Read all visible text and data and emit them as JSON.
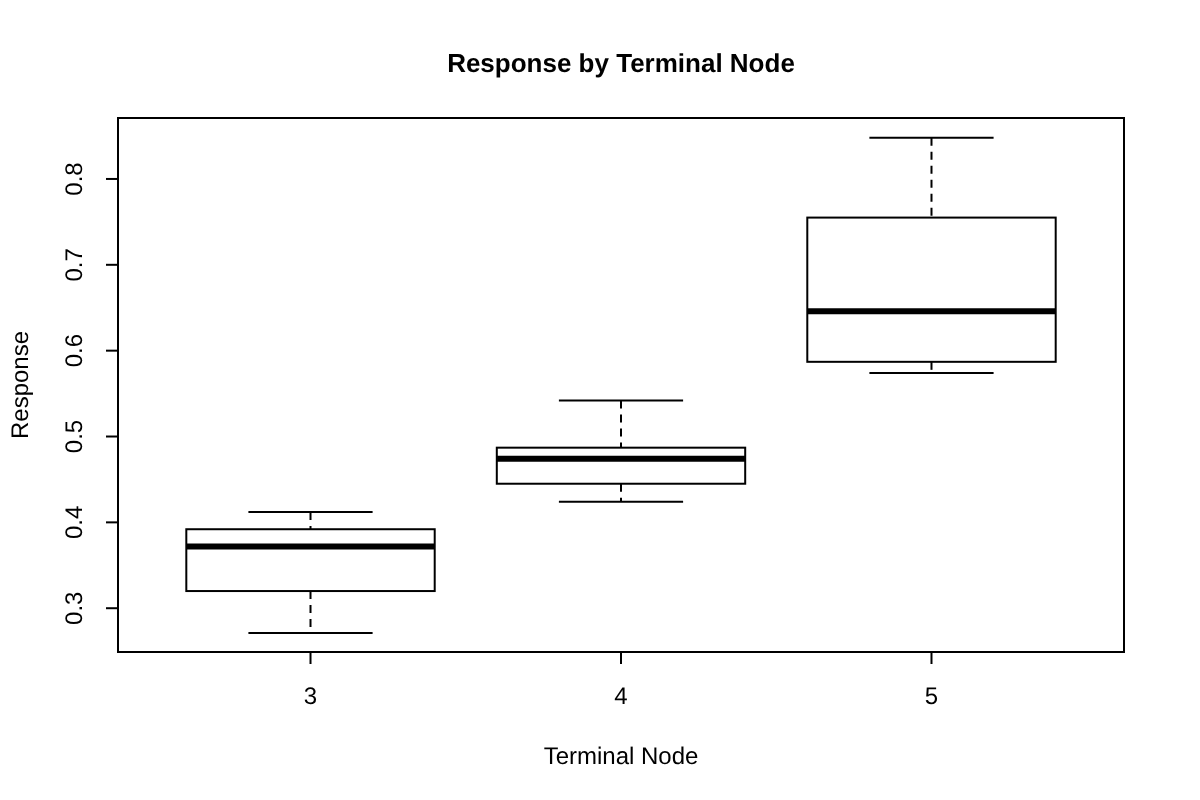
{
  "chart_data": {
    "type": "box",
    "title": "Response by Terminal Node",
    "xlabel": "Terminal Node",
    "ylabel": "Response",
    "categories": [
      "3",
      "4",
      "5"
    ],
    "boxes": [
      {
        "low": 0.271,
        "q1": 0.32,
        "median": 0.372,
        "q3": 0.392,
        "high": 0.412
      },
      {
        "low": 0.424,
        "q1": 0.445,
        "median": 0.474,
        "q3": 0.487,
        "high": 0.542
      },
      {
        "low": 0.574,
        "q1": 0.587,
        "median": 0.646,
        "q3": 0.755,
        "high": 0.848
      }
    ],
    "color": "#000000",
    "ylim": [
      0.249,
      0.871
    ],
    "yticks": [
      0.3,
      0.4,
      0.5,
      0.6,
      0.7,
      0.8
    ],
    "grid": false
  }
}
